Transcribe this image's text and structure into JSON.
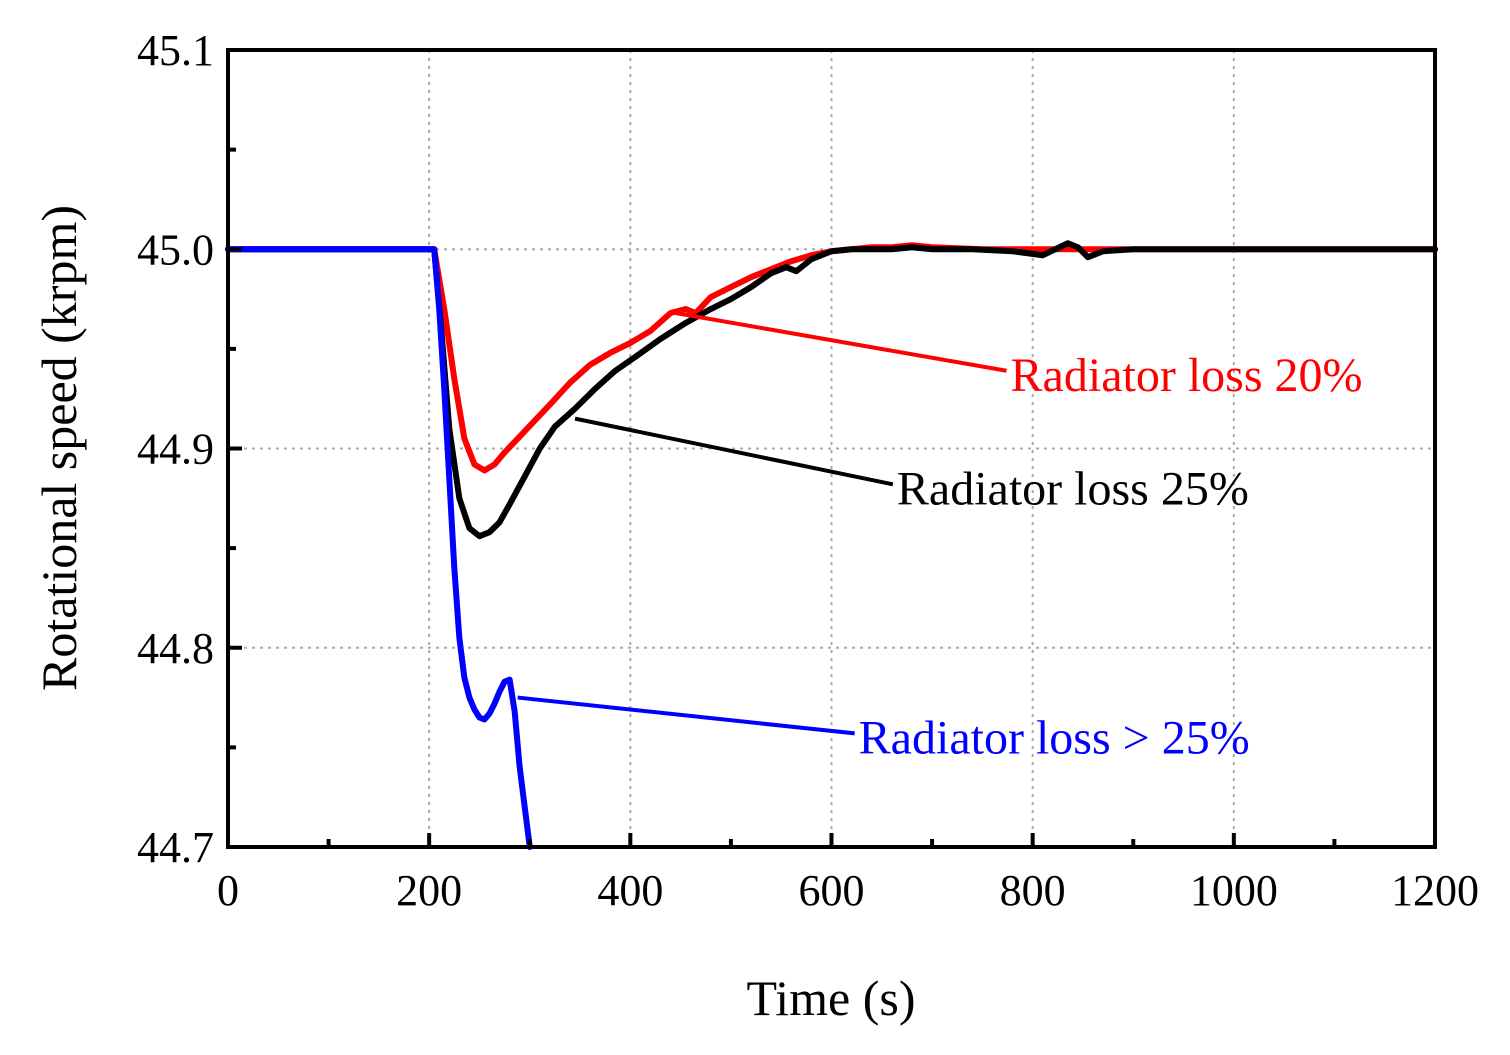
{
  "chart_data": {
    "type": "line",
    "title": "",
    "xlabel": "Time (s)",
    "ylabel": "Rotational speed (krpm)",
    "xlim": [
      0,
      1200
    ],
    "ylim": [
      44.7,
      45.1
    ],
    "xticks": [
      0,
      200,
      400,
      600,
      800,
      1000,
      1200
    ],
    "xtick_labels": [
      "0",
      "200",
      "400",
      "600",
      "800",
      "1000",
      "1200"
    ],
    "yticks": [
      44.7,
      44.8,
      44.9,
      45.0,
      45.1
    ],
    "ytick_labels": [
      "44.7",
      "44.8",
      "44.9",
      "45.0",
      "45.1"
    ],
    "grid": true,
    "series": [
      {
        "name": "Radiator loss 20%",
        "color": "#ff0000",
        "x": [
          0,
          200,
          205,
          215,
          225,
          235,
          245,
          255,
          265,
          275,
          290,
          305,
          320,
          340,
          360,
          380,
          400,
          420,
          440,
          455,
          465,
          480,
          500,
          520,
          540,
          560,
          580,
          600,
          620,
          640,
          660,
          680,
          700,
          750,
          800,
          850,
          900,
          950,
          1000,
          1050,
          1100,
          1150,
          1200
        ],
        "y": [
          45.0,
          45.0,
          45.0,
          44.97,
          44.935,
          44.905,
          44.892,
          44.889,
          44.892,
          44.898,
          44.906,
          44.914,
          44.922,
          44.933,
          44.942,
          44.948,
          44.953,
          44.959,
          44.968,
          44.97,
          44.968,
          44.976,
          44.981,
          44.986,
          44.99,
          44.994,
          44.997,
          44.999,
          45.0,
          45.001,
          45.001,
          45.002,
          45.001,
          45.0,
          45.0,
          45.0,
          45.0,
          45.0,
          45.0,
          45.0,
          45.0,
          45.0,
          45.0
        ]
      },
      {
        "name": "Radiator loss 25%",
        "color": "#000000",
        "x": [
          0,
          200,
          205,
          212,
          220,
          230,
          240,
          250,
          260,
          270,
          280,
          295,
          310,
          325,
          345,
          365,
          385,
          405,
          430,
          455,
          480,
          500,
          520,
          540,
          555,
          565,
          580,
          600,
          620,
          640,
          660,
          680,
          700,
          740,
          780,
          810,
          835,
          845,
          855,
          870,
          900,
          950,
          1000,
          1050,
          1100,
          1150,
          1200
        ],
        "y": [
          45.0,
          45.0,
          45.0,
          44.96,
          44.91,
          44.875,
          44.86,
          44.856,
          44.858,
          44.863,
          44.872,
          44.886,
          44.9,
          44.911,
          44.92,
          44.93,
          44.939,
          44.946,
          44.955,
          44.963,
          44.97,
          44.975,
          44.981,
          44.988,
          44.991,
          44.989,
          44.995,
          44.999,
          45.0,
          45.0,
          45.0,
          45.001,
          45.0,
          45.0,
          44.999,
          44.997,
          45.003,
          45.001,
          44.996,
          44.999,
          45.0,
          45.0,
          45.0,
          45.0,
          45.0,
          45.0,
          45.0
        ]
      },
      {
        "name": "Radiator loss > 25%",
        "color": "#0000ff",
        "x": [
          0,
          200,
          205,
          210,
          215,
          220,
          225,
          230,
          235,
          240,
          245,
          250,
          255,
          260,
          265,
          270,
          275,
          280,
          285,
          290,
          295,
          300
        ],
        "y": [
          45.0,
          45.0,
          45.0,
          44.97,
          44.93,
          44.885,
          44.84,
          44.805,
          44.785,
          44.775,
          44.769,
          44.765,
          44.764,
          44.767,
          44.772,
          44.778,
          44.783,
          44.784,
          44.768,
          44.74,
          44.72,
          44.7
        ]
      }
    ],
    "annotations": [
      {
        "text": "Radiator loss 20%",
        "color": "#ff0000",
        "x": 778,
        "y": 44.937,
        "arrow_x": 445,
        "arrow_y": 44.968
      },
      {
        "text": "Radiator loss 25%",
        "color": "#000000",
        "x": 665,
        "y": 44.88,
        "arrow_x": 345,
        "arrow_y": 44.915
      },
      {
        "text": "Radiator loss > 25%",
        "color": "#0000ff",
        "x": 627,
        "y": 44.755,
        "arrow_x": 288,
        "arrow_y": 44.775
      }
    ]
  }
}
